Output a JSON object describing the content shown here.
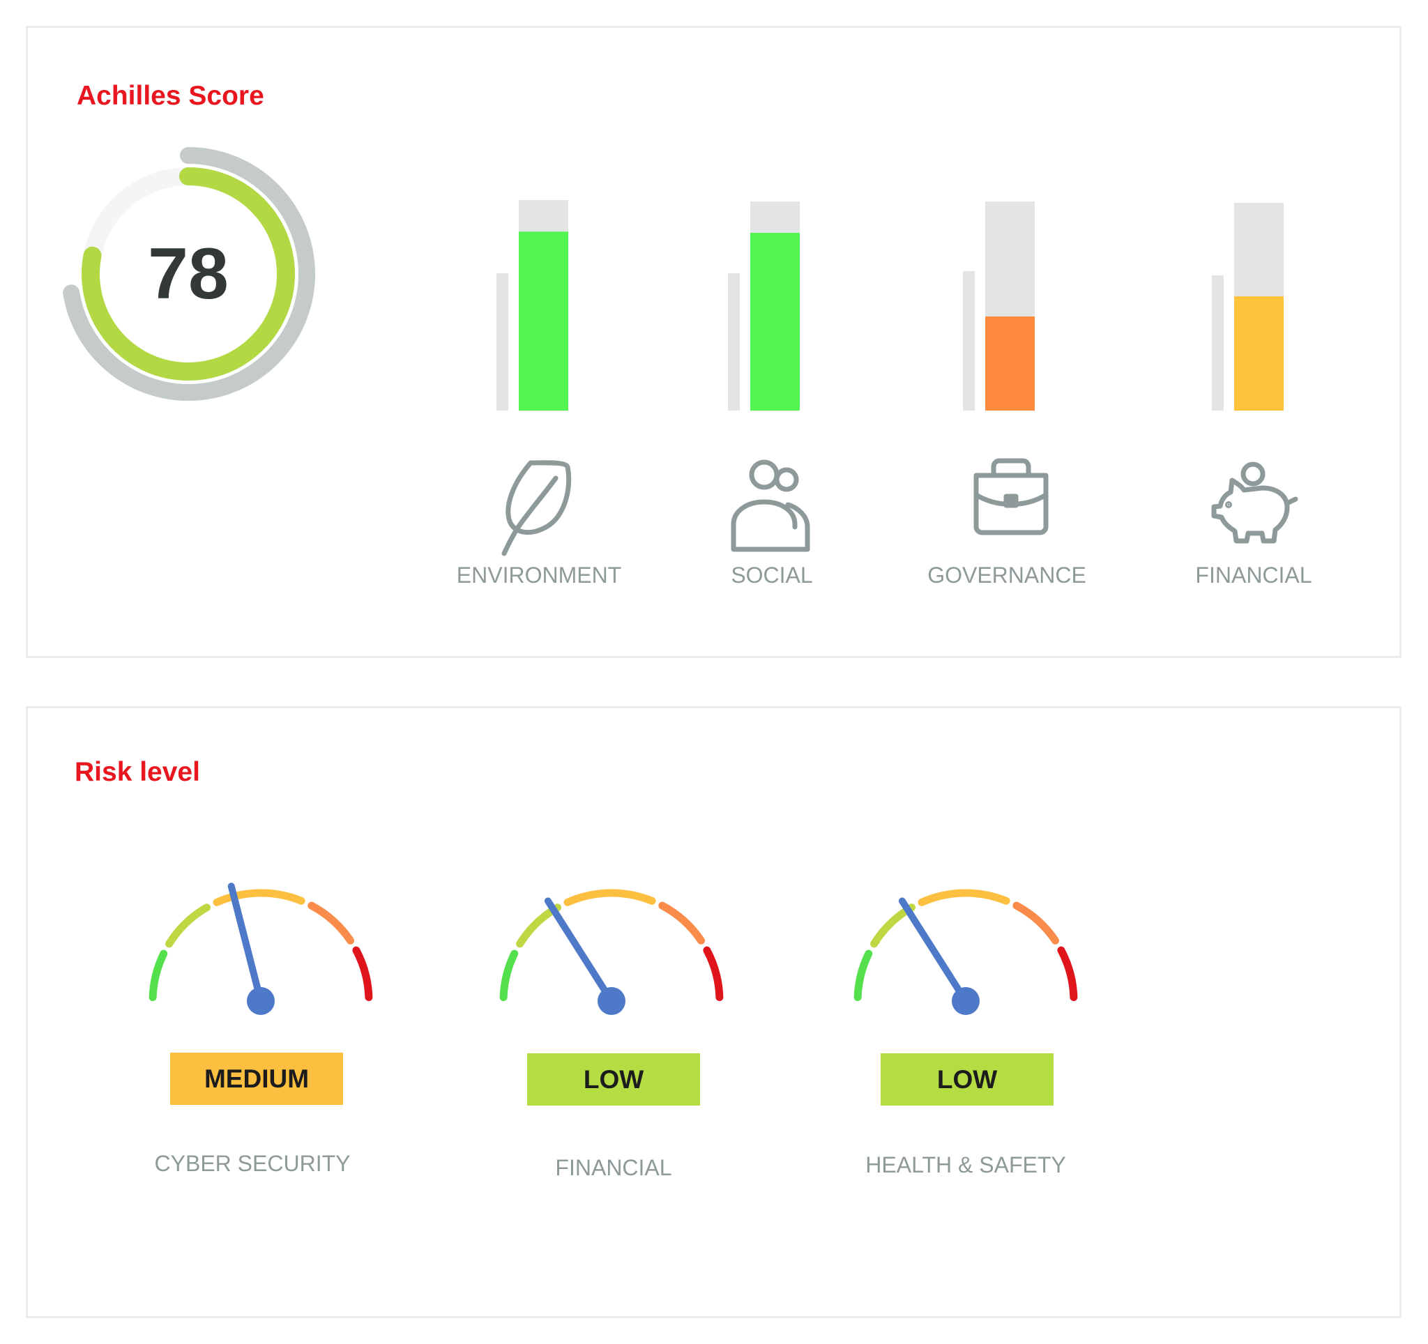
{
  "score_panel": {
    "title": "Achilles Score",
    "score": 78,
    "score_text": "78",
    "categories": [
      {
        "label": "ENVIRONMENT",
        "icon": "leaf-icon",
        "fill": 0.85,
        "color": "#52f552"
      },
      {
        "label": "SOCIAL",
        "icon": "people-icon",
        "fill": 0.85,
        "color": "#52f552"
      },
      {
        "label": "GOVERNANCE",
        "icon": "briefcase-icon",
        "fill": 0.45,
        "color": "#ff8a3e"
      },
      {
        "label": "FINANCIAL",
        "icon": "piggy-bank-icon",
        "fill": 0.55,
        "color": "#ffc23b"
      }
    ]
  },
  "risk_panel": {
    "title": "Risk level",
    "gauges": [
      {
        "label": "CYBER SECURITY",
        "level": "MEDIUM",
        "badge_color": "#fdbf3f",
        "needle_value": 0.42
      },
      {
        "label": "FINANCIAL",
        "level": "LOW",
        "badge_color": "#b3dd42",
        "needle_value": 0.32
      },
      {
        "label": "HEALTH & SAFETY",
        "level": "LOW",
        "badge_color": "#b3dd42",
        "needle_value": 0.32
      }
    ]
  },
  "colors": {
    "title_red": "#e8171f",
    "label_gray": "#8e9a9a",
    "track_gray": "#e2e5e4",
    "score_green": "#b2d843",
    "score_outer_gray": "#c5cbcb",
    "needle_blue": "#4e79c8",
    "gauge_segments": [
      "#53e04c",
      "#bed742",
      "#fdbf3f",
      "#f98c4a",
      "#e0141b"
    ]
  }
}
